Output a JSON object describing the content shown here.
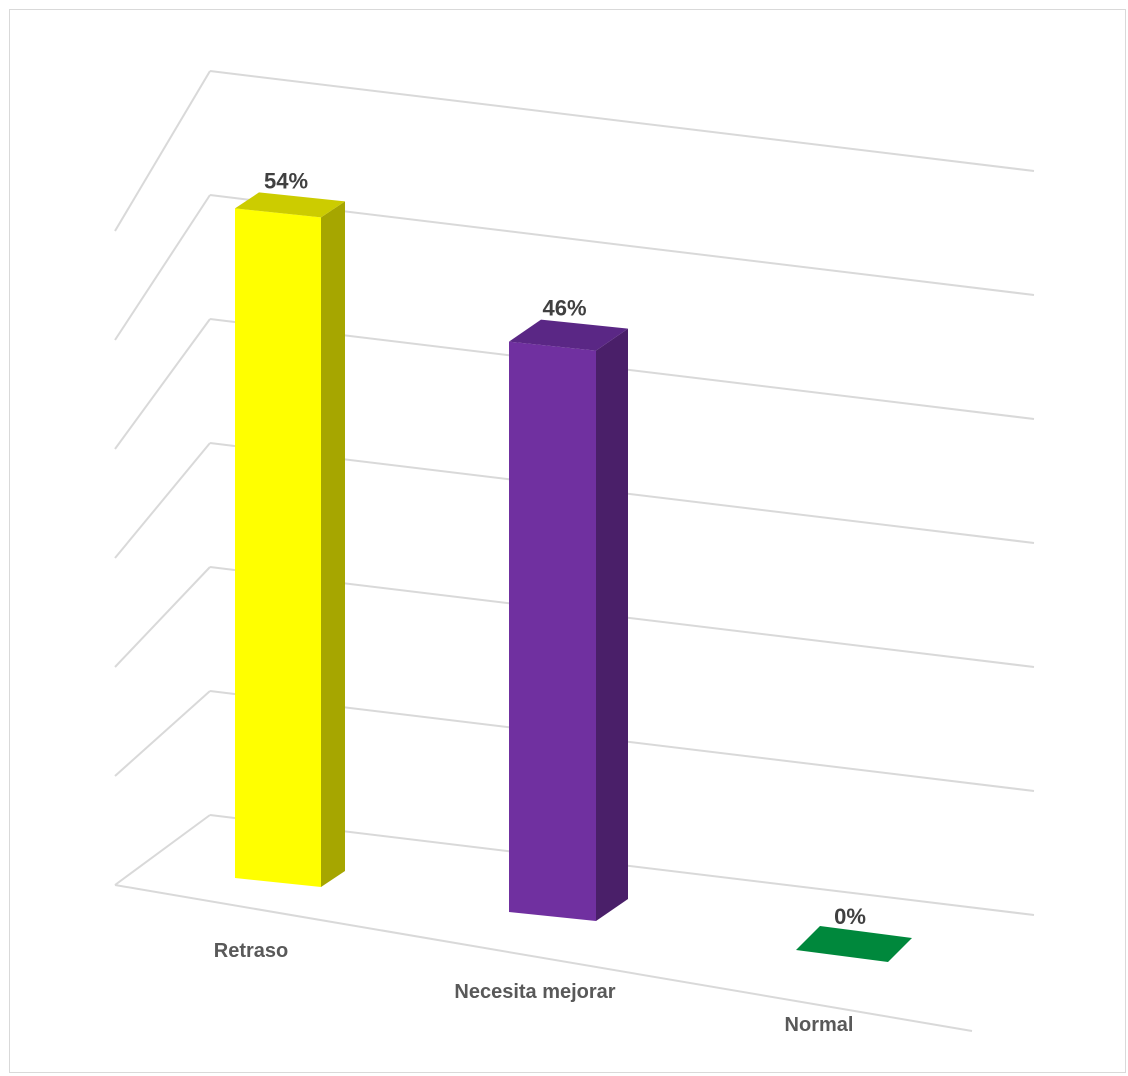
{
  "chart_data": {
    "type": "bar",
    "style": "3d-column",
    "categories": [
      "Retraso",
      "Necesita mejorar",
      "Normal"
    ],
    "values": [
      54,
      46,
      0
    ],
    "data_labels": [
      "54%",
      "46%",
      "0%"
    ],
    "unit": "%",
    "ylim": [
      0,
      60
    ],
    "grid": true,
    "legend": "none",
    "colors": [
      "#FFFF00",
      "#7030A0",
      "#00883C"
    ],
    "side_colors": [
      "#A6A600",
      "#4A1F69",
      "#006B2E"
    ],
    "top_colors": [
      "#CCCC00",
      "#5A2785",
      "#00883C"
    ]
  }
}
